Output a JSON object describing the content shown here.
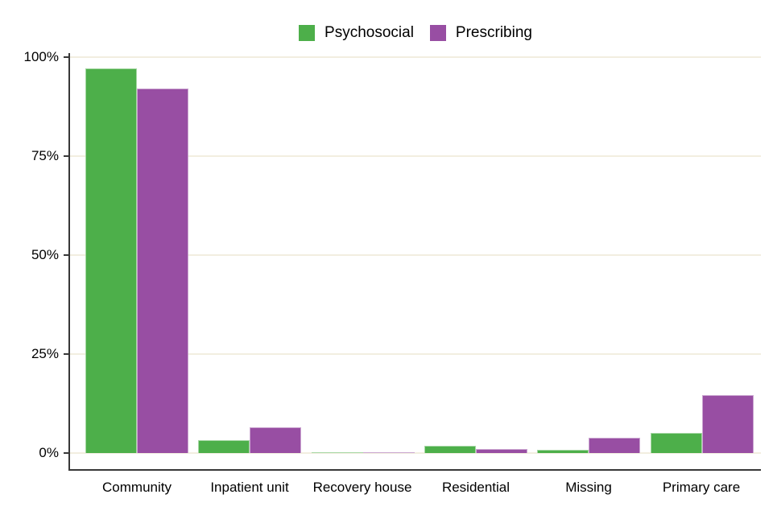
{
  "chart_data": {
    "type": "bar",
    "categories": [
      "Community",
      "Inpatient unit",
      "Recovery house",
      "Residential",
      "Missing",
      "Primary care"
    ],
    "series": [
      {
        "name": "Psychosocial",
        "color": "#4daf4a",
        "border_color": "#a6d7a4",
        "values": [
          97.2,
          3.3,
          0.2,
          1.8,
          0.8,
          5.1
        ]
      },
      {
        "name": "Prescribing",
        "color": "#984ea3",
        "border_color": "#cba6d1",
        "values": [
          92.1,
          6.5,
          0.3,
          1.1,
          3.8,
          14.6
        ]
      }
    ],
    "xlabel": "",
    "ylabel": "",
    "y_ticks": [
      "0%",
      "25%",
      "50%",
      "75%",
      "100%"
    ],
    "y_tick_values": [
      0,
      25,
      50,
      75,
      100
    ],
    "ylim": [
      0,
      100
    ],
    "grid": "horizontal",
    "gridline_color": "#f2eee0",
    "axis_color": "#383838",
    "text_color": "#000000",
    "background": "#ffffff",
    "legend_position": "top"
  }
}
